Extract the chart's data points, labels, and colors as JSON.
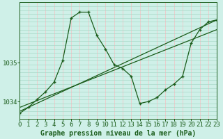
{
  "title": "Graphe pression niveau de la mer (hPa)",
  "background_color": "#cff0e8",
  "plot_bg_color": "#cff0e8",
  "grid_color_v": "#f0c8c8",
  "grid_color_h": "#a8d8c8",
  "line_color": "#1a5c1a",
  "xlim": [
    0,
    23
  ],
  "ylim": [
    1033.55,
    1036.55
  ],
  "yticks": [
    1034,
    1035
  ],
  "xticks": [
    0,
    1,
    2,
    3,
    4,
    5,
    6,
    7,
    8,
    9,
    10,
    11,
    12,
    13,
    14,
    15,
    16,
    17,
    18,
    19,
    20,
    21,
    22,
    23
  ],
  "series1_x": [
    0,
    1,
    2,
    3,
    4,
    5,
    6,
    7,
    8,
    9,
    10,
    11,
    12,
    13,
    14,
    15,
    16,
    17,
    18,
    19,
    20,
    21,
    22,
    23
  ],
  "series1_y": [
    1033.7,
    1033.85,
    1034.05,
    1034.25,
    1034.5,
    1035.05,
    1036.15,
    1036.3,
    1036.3,
    1035.7,
    1035.35,
    1034.95,
    1034.85,
    1034.65,
    1033.95,
    1034.0,
    1034.1,
    1034.3,
    1034.45,
    1034.65,
    1035.5,
    1035.85,
    1036.05,
    1036.1
  ],
  "trend1_x": [
    0,
    23
  ],
  "trend1_y": [
    1033.75,
    1036.1
  ],
  "trend2_x": [
    0,
    23
  ],
  "trend2_y": [
    1033.85,
    1035.85
  ],
  "xlabel_fontsize": 7,
  "tick_fontsize": 6.5
}
